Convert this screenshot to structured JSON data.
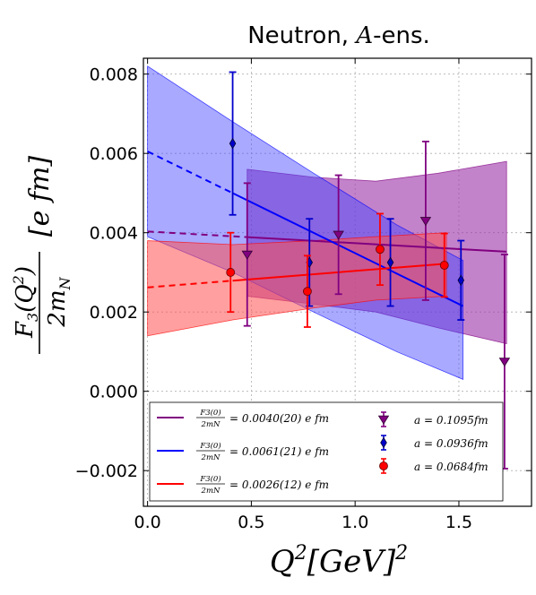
{
  "chart_data": {
    "type": "scatter",
    "title": "Neutron, A-ens.",
    "title_prefix": "Neutron,",
    "title_italic": "A",
    "title_suffix": "-ens.",
    "xlabel_main": "Q",
    "xlabel_sup": "2",
    "xlabel_bracket": "[GeV]",
    "xlabel_bracket_sup": "2",
    "ylabel_num_main": "F",
    "ylabel_num_sub": "3",
    "ylabel_num_arg": "(Q",
    "ylabel_num_arg_sup": "2",
    "ylabel_num_close": ")",
    "ylabel_den": "2m",
    "ylabel_den_sub": "N",
    "ylabel_units": "[e fm]",
    "xlim": [
      -0.02,
      1.85
    ],
    "ylim": [
      -0.0029,
      0.0084
    ],
    "grid": true,
    "legend_position": "lower-center",
    "x_ticks": [
      {
        "value": 0.0,
        "label": "0.0"
      },
      {
        "value": 0.5,
        "label": "0.5"
      },
      {
        "value": 1.0,
        "label": "1.0"
      },
      {
        "value": 1.5,
        "label": "1.5"
      }
    ],
    "y_ticks": [
      {
        "value": -0.002,
        "label": "−0.002"
      },
      {
        "value": 0.0,
        "label": "0.000"
      },
      {
        "value": 0.002,
        "label": "0.002"
      },
      {
        "value": 0.004,
        "label": "0.004"
      },
      {
        "value": 0.006,
        "label": "0.006"
      },
      {
        "value": 0.008,
        "label": "0.008"
      }
    ],
    "fits": [
      {
        "legend_frac_num": "F3(0)",
        "legend_frac_den": "2mN",
        "legend_value": "= 0.0040(20) e fm",
        "color": "#800080",
        "band_fill": "#9b30a6",
        "band_opacity": 0.6,
        "x_start": 0.0,
        "x_data_start": 0.48,
        "x_end": 1.73,
        "center": [
          [
            0.0,
            0.00403
          ],
          [
            1.73,
            0.00352
          ]
        ],
        "upper": [
          [
            0.48,
            0.0056
          ],
          [
            0.8,
            0.0054
          ],
          [
            1.1,
            0.0053
          ],
          [
            1.4,
            0.0055
          ],
          [
            1.73,
            0.0058
          ]
        ],
        "lower": [
          [
            0.48,
            0.0024
          ],
          [
            0.8,
            0.0022
          ],
          [
            1.1,
            0.002
          ],
          [
            1.4,
            0.0016
          ],
          [
            1.73,
            0.0012
          ]
        ]
      },
      {
        "legend_frac_num": "F3(0)",
        "legend_frac_den": "2mN",
        "legend_value": "= 0.0061(21) e fm",
        "color": "#0000ff",
        "band_fill": "#4040ff",
        "band_opacity": 0.45,
        "x_start": 0.0,
        "x_data_start": 0.41,
        "x_end": 1.52,
        "center": [
          [
            0.0,
            0.00605
          ],
          [
            1.52,
            0.00215
          ]
        ],
        "upper": [
          [
            0.0,
            0.0082
          ],
          [
            0.41,
            0.0068
          ],
          [
            0.8,
            0.0055
          ],
          [
            1.2,
            0.0042
          ],
          [
            1.52,
            0.0033
          ]
        ],
        "lower": [
          [
            0.0,
            0.0039
          ],
          [
            0.41,
            0.003
          ],
          [
            0.8,
            0.002
          ],
          [
            1.2,
            0.001
          ],
          [
            1.52,
            0.0003
          ]
        ]
      },
      {
        "legend_frac_num": "F3(0)",
        "legend_frac_den": "2mN",
        "legend_value": "= 0.0026(12) e fm",
        "color": "#ff0000",
        "band_fill": "#ff5050",
        "band_opacity": 0.55,
        "x_start": 0.0,
        "x_data_start": 0.41,
        "x_end": 1.44,
        "center": [
          [
            0.0,
            0.00262
          ],
          [
            1.44,
            0.00322
          ]
        ],
        "upper": [
          [
            0.0,
            0.0038
          ],
          [
            0.41,
            0.0037
          ],
          [
            0.8,
            0.0038
          ],
          [
            1.1,
            0.0039
          ],
          [
            1.44,
            0.004
          ]
        ],
        "lower": [
          [
            0.0,
            0.0014
          ],
          [
            0.41,
            0.0018
          ],
          [
            0.8,
            0.0021
          ],
          [
            1.1,
            0.0023
          ],
          [
            1.44,
            0.0024
          ]
        ]
      }
    ],
    "series": [
      {
        "name": "a = 0.1095fm",
        "color": "#800080",
        "marker": "triangle-down",
        "points": [
          {
            "x": 0.48,
            "y": 0.00345,
            "err": 0.0018
          },
          {
            "x": 0.92,
            "y": 0.00395,
            "err": 0.0015
          },
          {
            "x": 1.34,
            "y": 0.0043,
            "err": 0.002
          },
          {
            "x": 1.72,
            "y": 0.00075,
            "err": 0.0027
          }
        ]
      },
      {
        "name": "a = 0.0936fm",
        "color": "#0000cc",
        "marker": "diamond",
        "points": [
          {
            "x": 0.41,
            "y": 0.00625,
            "err": 0.0018
          },
          {
            "x": 0.78,
            "y": 0.00325,
            "err": 0.0011
          },
          {
            "x": 1.17,
            "y": 0.00325,
            "err": 0.0011
          },
          {
            "x": 1.51,
            "y": 0.0028,
            "err": 0.001
          }
        ]
      },
      {
        "name": "a = 0.0684fm",
        "color": "#ff0000",
        "marker": "circle",
        "points": [
          {
            "x": 0.4,
            "y": 0.003,
            "err": 0.001
          },
          {
            "x": 0.77,
            "y": 0.00252,
            "err": 0.0009
          },
          {
            "x": 1.12,
            "y": 0.00358,
            "err": 0.0009
          },
          {
            "x": 1.43,
            "y": 0.00318,
            "err": 0.0008
          }
        ]
      }
    ]
  }
}
